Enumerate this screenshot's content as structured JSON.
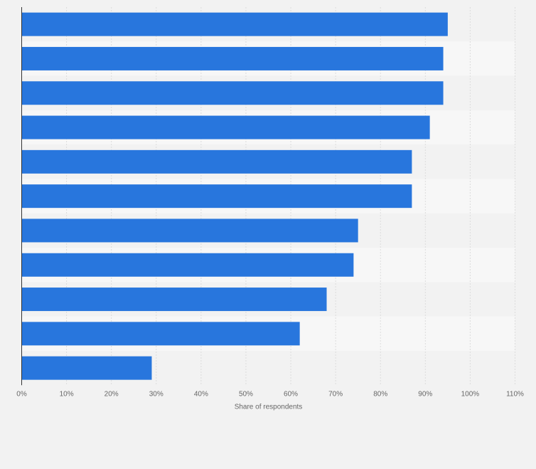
{
  "chart_data": {
    "type": "bar",
    "orientation": "horizontal",
    "xlabel": "Share of respondents",
    "ylabel": "",
    "xlim": [
      0,
      110
    ],
    "x_tick_labels": [
      "0%",
      "10%",
      "20%",
      "30%",
      "40%",
      "50%",
      "60%",
      "70%",
      "80%",
      "90%",
      "100%",
      "110%"
    ],
    "categories": [
      "",
      "",
      "",
      "",
      "",
      "",
      "",
      "",
      "",
      "",
      ""
    ],
    "values": [
      95,
      94,
      94,
      91,
      87,
      87,
      75,
      74,
      68,
      62,
      29
    ],
    "grid": true,
    "legend": "none",
    "colors": {
      "bar": "#2876dd",
      "page_background": "#f2f2f2",
      "band_dark": "#f2f2f2",
      "band_light": "#f7f7f7",
      "gridline": "#dcdcdc",
      "axis": "#333333",
      "text": "#666666"
    }
  }
}
